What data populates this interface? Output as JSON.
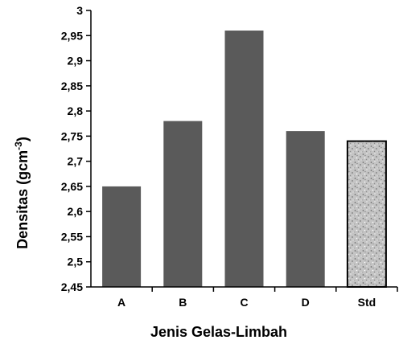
{
  "chart_data": {
    "type": "bar",
    "categories": [
      "A",
      "B",
      "C",
      "D",
      "Std"
    ],
    "values": [
      2.65,
      2.78,
      2.96,
      2.76,
      2.74
    ],
    "bar_styles": [
      "solid",
      "solid",
      "solid",
      "solid",
      "speckled"
    ],
    "colors": {
      "bar": "#5a5a5a",
      "std_bar": "#bdbdbd",
      "axis": "#000000"
    },
    "xlabel": "Jenis Gelas-Limbah",
    "ylabel": "Densitas (gcm-3)",
    "ylabel_text": "Densitas (gcm",
    "ylabel_sup": "-3",
    "ylabel_close": ")",
    "ylim": [
      2.45,
      3
    ],
    "yticks": [
      2.45,
      2.5,
      2.55,
      2.6,
      2.65,
      2.7,
      2.75,
      2.8,
      2.85,
      2.9,
      2.95,
      3
    ],
    "ytick_labels": [
      "2,45",
      "2,5",
      "2,55",
      "2,6",
      "2,65",
      "2,7",
      "2,75",
      "2,8",
      "2,85",
      "2,9",
      "2,95",
      "3"
    ],
    "grid": false,
    "legend": "none"
  }
}
